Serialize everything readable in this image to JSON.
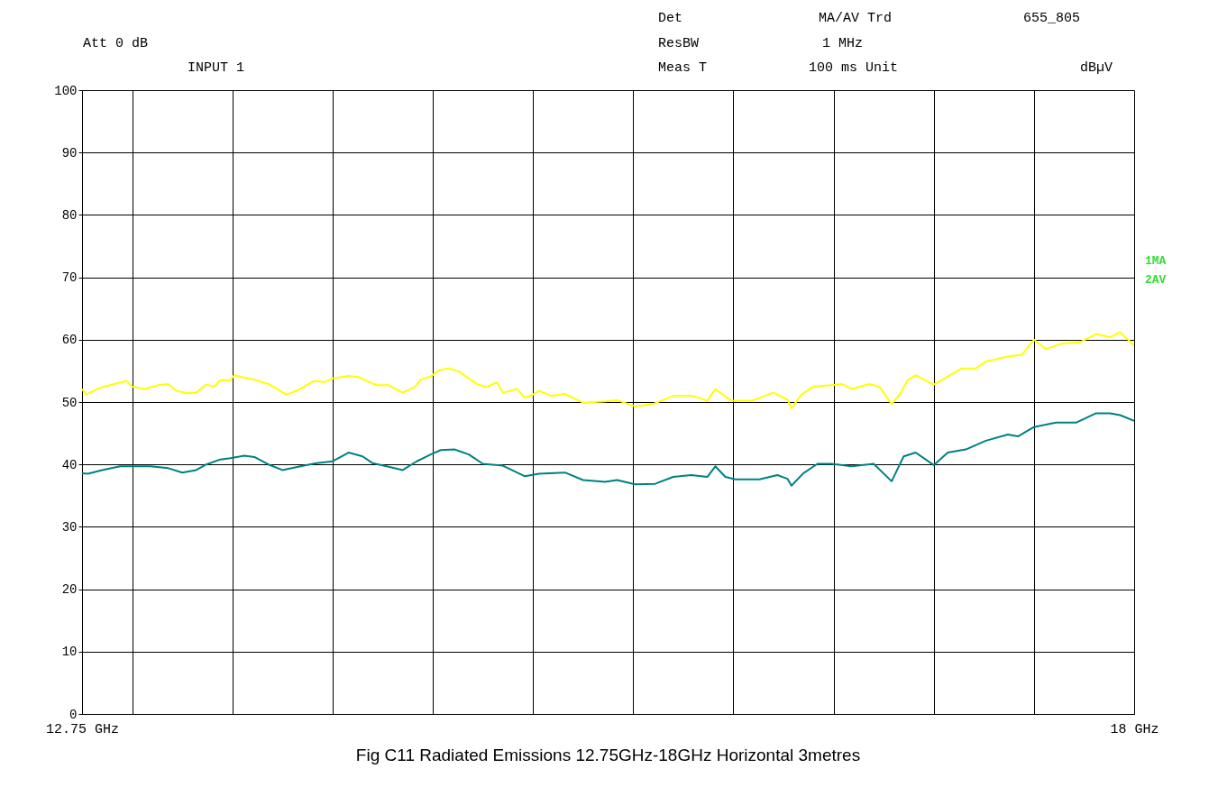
{
  "chart_data": {
    "type": "line",
    "title": "Fig C11 Radiated Emissions 12.75GHz-18GHz Horizontal 3metres",
    "annotations": [
      "Att 0 dB",
      "INPUT 1",
      "Det",
      "MA/AV Trd",
      "655_805",
      "ResBW",
      "1 MHz",
      "Meas T",
      "100 ms Unit",
      "dBµV"
    ],
    "xlim": [
      12.75,
      18
    ],
    "xticks": [
      {
        "value": 12.75,
        "label": "12.75 GHz"
      },
      {
        "value": 13,
        "label": null
      },
      {
        "value": 13.5,
        "label": null
      },
      {
        "value": 14,
        "label": null
      },
      {
        "value": 14.5,
        "label": null
      },
      {
        "value": 15,
        "label": null
      },
      {
        "value": 15.5,
        "label": null
      },
      {
        "value": 16,
        "label": null
      },
      {
        "value": 16.5,
        "label": null
      },
      {
        "value": 17,
        "label": null
      },
      {
        "value": 17.5,
        "label": null
      },
      {
        "value": 18,
        "label": "18 GHz"
      }
    ],
    "ylim": [
      0,
      100
    ],
    "yticks": [
      0,
      10,
      20,
      30,
      40,
      50,
      60,
      70,
      80,
      90,
      100
    ],
    "grid": true,
    "legend": "right",
    "series": [
      {
        "name": "1MA",
        "color": "#ffff00",
        "x": [
          12.75,
          12.77,
          12.84,
          12.89,
          12.97,
          13.0,
          13.06,
          13.13,
          13.18,
          13.22,
          13.28,
          13.32,
          13.37,
          13.41,
          13.44,
          13.49,
          13.51,
          13.56,
          13.61,
          13.68,
          13.77,
          13.82,
          13.91,
          13.96,
          14.0,
          14.08,
          14.13,
          14.22,
          14.28,
          14.35,
          14.41,
          14.44,
          14.49,
          14.53,
          14.58,
          14.63,
          14.72,
          14.77,
          14.82,
          14.85,
          14.92,
          14.96,
          15.0,
          15.03,
          15.09,
          15.16,
          15.25,
          15.36,
          15.42,
          15.51,
          15.6,
          15.7,
          15.8,
          15.87,
          15.91,
          15.99,
          16.09,
          16.2,
          16.27,
          16.29,
          16.34,
          16.4,
          16.49,
          16.54,
          16.59,
          16.68,
          16.73,
          16.79,
          16.83,
          16.87,
          16.91,
          16.95,
          17.0,
          17.07,
          17.14,
          17.21,
          17.26,
          17.37,
          17.44,
          17.5,
          17.56,
          17.64,
          17.73,
          17.81,
          17.88,
          17.93,
          18.0
        ],
        "values": [
          52.1,
          51.2,
          52.3,
          52.7,
          53.4,
          52.5,
          52.1,
          52.7,
          52.9,
          51.8,
          51.4,
          51.5,
          52.8,
          52.5,
          53.5,
          53.5,
          54.3,
          53.9,
          53.6,
          52.9,
          51.2,
          51.8,
          53.4,
          53.2,
          53.8,
          54.2,
          54.0,
          52.7,
          52.7,
          51.5,
          52.4,
          53.6,
          54.1,
          55.1,
          55.4,
          54.9,
          52.9,
          52.4,
          53.2,
          51.5,
          52.1,
          50.7,
          51.2,
          51.8,
          51.0,
          51.3,
          49.9,
          50.1,
          50.3,
          49.3,
          49.7,
          51.0,
          51.0,
          50.2,
          52.1,
          50.2,
          50.2,
          51.5,
          50.4,
          49.0,
          51.2,
          52.5,
          52.7,
          52.9,
          52.1,
          52.9,
          52.4,
          49.7,
          51.2,
          53.5,
          54.3,
          53.6,
          52.8,
          54.1,
          55.4,
          55.4,
          56.5,
          57.3,
          57.6,
          60.0,
          58.5,
          59.4,
          59.6,
          60.9,
          60.4,
          61.2,
          59.1
        ]
      },
      {
        "name": "2AV",
        "color": "#008080",
        "x": [
          12.75,
          12.78,
          12.85,
          12.94,
          13.0,
          13.09,
          13.18,
          13.25,
          13.32,
          13.37,
          13.44,
          13.49,
          13.56,
          13.61,
          13.68,
          13.75,
          13.84,
          13.92,
          14.0,
          14.08,
          14.15,
          14.2,
          14.27,
          14.35,
          14.42,
          14.49,
          14.54,
          14.61,
          14.68,
          14.75,
          14.85,
          14.96,
          15.03,
          15.16,
          15.25,
          15.36,
          15.42,
          15.51,
          15.61,
          15.7,
          15.79,
          15.87,
          15.91,
          15.96,
          16.01,
          16.13,
          16.22,
          16.27,
          16.29,
          16.35,
          16.42,
          16.49,
          16.59,
          16.7,
          16.79,
          16.85,
          16.91,
          17.0,
          17.07,
          17.16,
          17.26,
          17.37,
          17.42,
          17.5,
          17.61,
          17.71,
          17.81,
          17.88,
          17.93,
          18.0
        ],
        "values": [
          38.6,
          38.5,
          39.1,
          39.7,
          39.7,
          39.7,
          39.4,
          38.7,
          39.1,
          40.0,
          40.8,
          41.0,
          41.4,
          41.2,
          40.0,
          39.1,
          39.7,
          40.2,
          40.5,
          41.9,
          41.3,
          40.2,
          39.7,
          39.1,
          40.5,
          41.6,
          42.3,
          42.4,
          41.6,
          40.1,
          39.8,
          38.1,
          38.5,
          38.7,
          37.5,
          37.2,
          37.5,
          36.8,
          36.9,
          38.0,
          38.3,
          38.0,
          39.7,
          38.0,
          37.6,
          37.6,
          38.3,
          37.7,
          36.6,
          38.6,
          40.1,
          40.1,
          39.7,
          40.1,
          37.3,
          41.3,
          41.9,
          39.9,
          41.9,
          42.4,
          43.8,
          44.8,
          44.5,
          46.0,
          46.7,
          46.7,
          48.2,
          48.2,
          47.9,
          47.0
        ]
      }
    ]
  }
}
